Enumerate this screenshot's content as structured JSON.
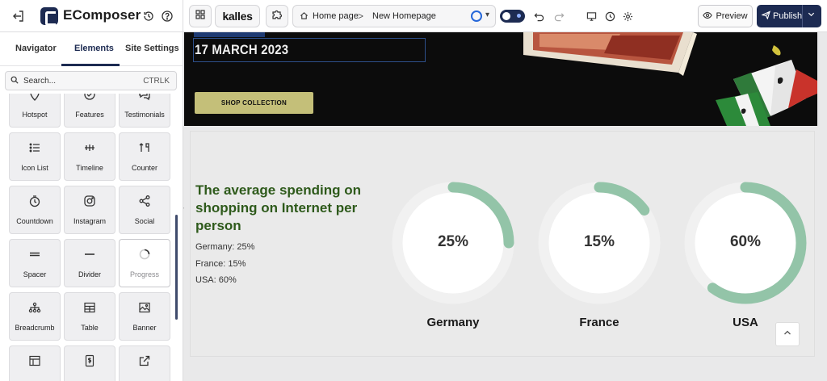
{
  "app": {
    "brand": "EComposer",
    "store_logo": "kalles",
    "url_home": "Home page",
    "url_separator": ">",
    "url_page": "New Homepage",
    "preview_label": "Preview",
    "publish_label": "Publish"
  },
  "sidebar": {
    "tabs": [
      "Navigator",
      "Elements",
      "Site Settings"
    ],
    "active_tab": "Elements",
    "search_placeholder": "Search...",
    "search_shortcut": "CTRLK",
    "elements": [
      {
        "label": "Hotspot",
        "icon": "hotspot-icon"
      },
      {
        "label": "Features",
        "icon": "features-icon"
      },
      {
        "label": "Testimonials",
        "icon": "testimonials-icon"
      },
      {
        "label": "Icon List",
        "icon": "icon-list-icon"
      },
      {
        "label": "Timeline",
        "icon": "timeline-icon"
      },
      {
        "label": "Counter",
        "icon": "counter-icon"
      },
      {
        "label": "Countdown",
        "icon": "countdown-icon"
      },
      {
        "label": "Instagram",
        "icon": "instagram-icon"
      },
      {
        "label": "Social",
        "icon": "social-icon"
      },
      {
        "label": "Spacer",
        "icon": "spacer-icon"
      },
      {
        "label": "Divider",
        "icon": "divider-icon"
      },
      {
        "label": "Progress",
        "icon": "progress-icon"
      },
      {
        "label": "Breadcrumb",
        "icon": "breadcrumb-icon"
      },
      {
        "label": "Table",
        "icon": "table-icon"
      },
      {
        "label": "Banner",
        "icon": "banner-icon"
      },
      {
        "label": "",
        "icon": "layout-icon"
      },
      {
        "label": "",
        "icon": "price-icon"
      },
      {
        "label": "",
        "icon": "external-link-icon"
      }
    ]
  },
  "canvas": {
    "hero_date": "17 MARCH 2023",
    "hero_button": "SHOP COLLECTION",
    "heading": "The average spending on shopping on Internet per person",
    "stats": [
      "Germany: 25%",
      "France: 15%",
      "USA: 60%"
    ],
    "rings": [
      {
        "country": "Germany",
        "percent_label": "25%",
        "fraction": 0.25
      },
      {
        "country": "France",
        "percent_label": "15%",
        "fraction": 0.15
      },
      {
        "country": "USA",
        "percent_label": "60%",
        "fraction": 0.6
      }
    ],
    "ring_color": "#93c4a8",
    "ring_track_color": "#f1f1f1",
    "heading_color": "#2e5a1b"
  }
}
